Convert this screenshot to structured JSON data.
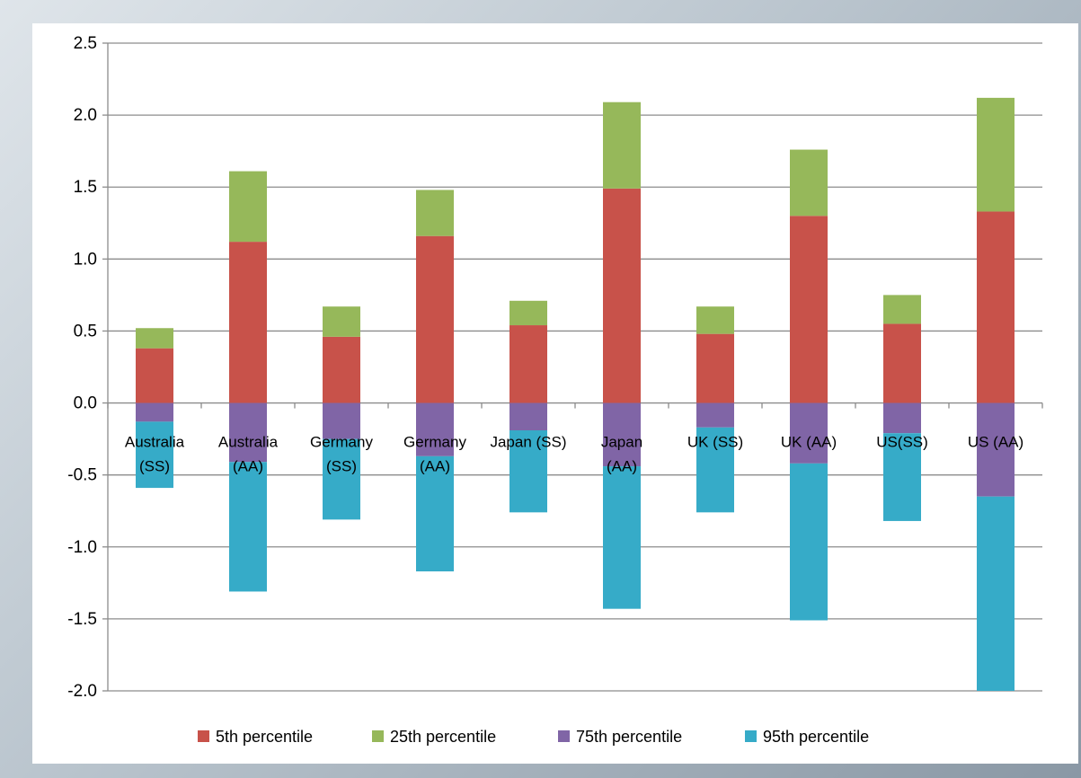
{
  "chart_data": {
    "type": "bar",
    "stacked": true,
    "categories": [
      [
        "Australia",
        "(SS)"
      ],
      [
        "Australia",
        "(AA)"
      ],
      [
        "Germany",
        "(SS)"
      ],
      [
        "Germany",
        "(AA)"
      ],
      [
        "Japan (SS)"
      ],
      [
        "Japan",
        "(AA)"
      ],
      [
        "UK (SS)"
      ],
      [
        "UK (AA)"
      ],
      [
        "US(SS)"
      ],
      [
        "US (AA)"
      ]
    ],
    "series": [
      {
        "name": "5th percentile",
        "color": "#c8524a",
        "values": [
          0.38,
          1.12,
          0.46,
          1.16,
          0.54,
          1.49,
          0.48,
          1.3,
          0.55,
          1.33
        ]
      },
      {
        "name": "25th percentile",
        "color": "#96b85a",
        "values": [
          0.14,
          0.49,
          0.21,
          0.32,
          0.17,
          0.6,
          0.19,
          0.46,
          0.2,
          0.79
        ]
      },
      {
        "name": "75th percentile",
        "color": "#8065a6",
        "values": [
          -0.13,
          -0.41,
          -0.25,
          -0.37,
          -0.19,
          -0.44,
          -0.17,
          -0.42,
          -0.21,
          -0.65
        ]
      },
      {
        "name": "95th percentile",
        "color": "#36abc8",
        "values": [
          -0.46,
          -0.9,
          -0.56,
          -0.8,
          -0.57,
          -0.99,
          -0.59,
          -1.09,
          -0.61,
          -1.35
        ]
      }
    ],
    "ylim": [
      -2.0,
      2.5
    ],
    "yticks": [
      "2.5",
      "2.0",
      "1.5",
      "1.0",
      "0.5",
      "0.0",
      "-0.5",
      "-1.0",
      "-1.5",
      "-2.0"
    ],
    "ytick_values": [
      2.5,
      2.0,
      1.5,
      1.0,
      0.5,
      0.0,
      -0.5,
      -1.0,
      -1.5,
      -2.0
    ],
    "grid": true,
    "legend": "bottom",
    "title": "",
    "xlabel": "",
    "ylabel": ""
  }
}
